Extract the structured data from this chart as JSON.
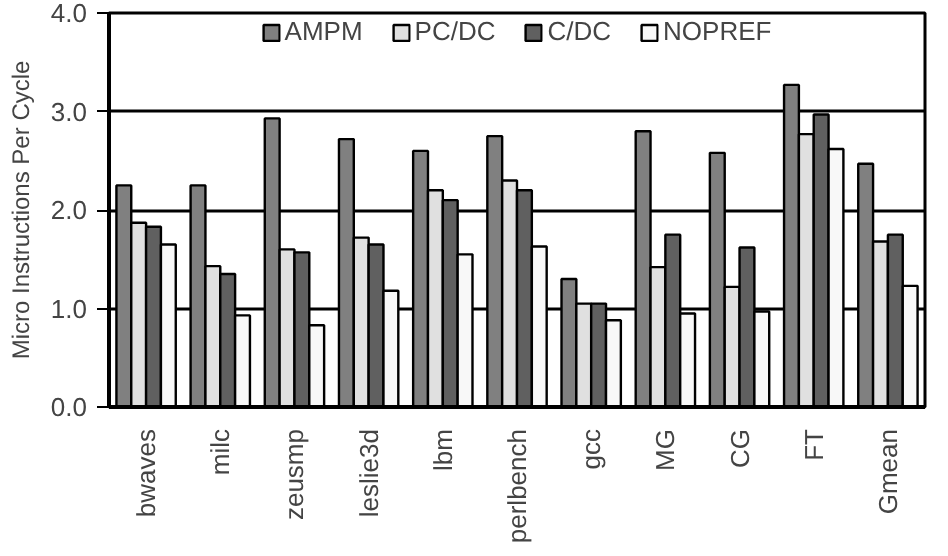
{
  "chart_data": {
    "type": "bar",
    "ylabel": "Micro Instructions Per Cycle",
    "categories": [
      "bwaves",
      "milc",
      "zeusmp",
      "leslie3d",
      "lbm",
      "perlbench",
      "gcc",
      "MG",
      "CG",
      "FT",
      "Gmean"
    ],
    "series": [
      {
        "name": "AMPM",
        "color": "#808080",
        "values": [
          2.25,
          2.25,
          2.93,
          2.72,
          2.6,
          2.75,
          1.3,
          2.8,
          2.58,
          3.27,
          2.47
        ]
      },
      {
        "name": "PC/DC",
        "color": "#e0e0e0",
        "values": [
          1.87,
          1.43,
          1.6,
          1.72,
          2.2,
          2.3,
          1.05,
          1.42,
          1.22,
          2.77,
          1.68
        ]
      },
      {
        "name": "C/DC",
        "color": "#606060",
        "values": [
          1.83,
          1.35,
          1.57,
          1.65,
          2.1,
          2.2,
          1.05,
          1.75,
          1.62,
          2.97,
          1.75
        ]
      },
      {
        "name": "NOPREF",
        "color": "#f8f8f8",
        "values": [
          1.65,
          0.93,
          0.83,
          1.18,
          1.55,
          1.63,
          0.88,
          0.95,
          0.97,
          2.62,
          1.23
        ]
      }
    ],
    "ylim": [
      0,
      4
    ],
    "yticks": [
      {
        "value": 0,
        "label": "0.0"
      },
      {
        "value": 1,
        "label": "1.0"
      },
      {
        "value": 2,
        "label": "2.0"
      },
      {
        "value": 3,
        "label": "3.0"
      },
      {
        "value": 4,
        "label": "4.0"
      }
    ],
    "grid": "y",
    "legend": "top"
  }
}
